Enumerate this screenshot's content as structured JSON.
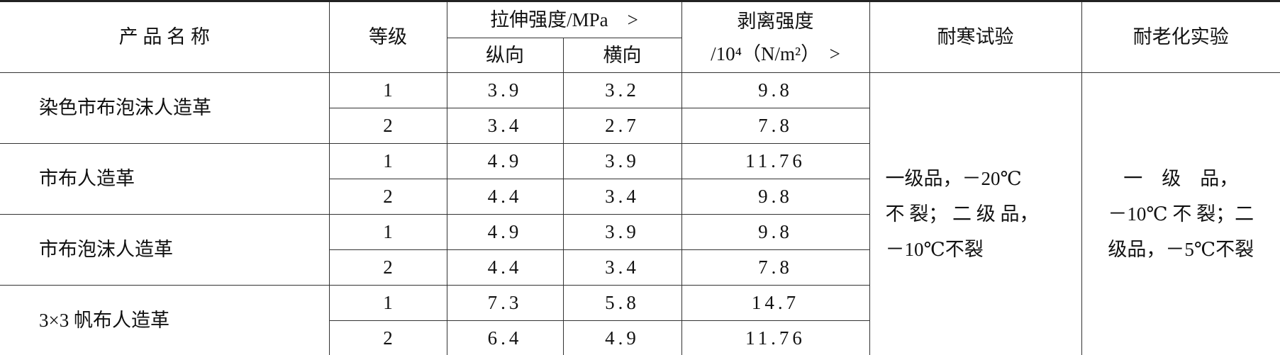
{
  "header": {
    "product": "产 品 名 称",
    "grade": "等级",
    "tensile": "拉伸强度/MPa　>",
    "longitudinal": "纵向",
    "transverse": "横向",
    "peel": [
      "剥离强度",
      "/10⁴（N/m²）　>"
    ],
    "cold": "耐寒试验",
    "aging": "耐老化实验"
  },
  "products": [
    {
      "name": "染色市布泡沫人造革",
      "grades": [
        {
          "grade": "1",
          "longitudinal": "3.9",
          "transverse": "3.2",
          "peel": "9.8"
        },
        {
          "grade": "2",
          "longitudinal": "3.4",
          "transverse": "2.7",
          "peel": "7.8"
        }
      ]
    },
    {
      "name": "市布人造革",
      "grades": [
        {
          "grade": "1",
          "longitudinal": "4.9",
          "transverse": "3.9",
          "peel": "11.76"
        },
        {
          "grade": "2",
          "longitudinal": "4.4",
          "transverse": "3.4",
          "peel": "9.8"
        }
      ]
    },
    {
      "name": "市布泡沫人造革",
      "grades": [
        {
          "grade": "1",
          "longitudinal": "4.9",
          "transverse": "3.9",
          "peel": "9.8"
        },
        {
          "grade": "2",
          "longitudinal": "4.4",
          "transverse": "3.4",
          "peel": "7.8"
        }
      ]
    },
    {
      "name": "3×3 帆布人造革",
      "grades": [
        {
          "grade": "1",
          "longitudinal": "7.3",
          "transverse": "5.8",
          "peel": "14.7"
        },
        {
          "grade": "2",
          "longitudinal": "6.4",
          "transverse": "4.9",
          "peel": "11.76"
        }
      ]
    }
  ],
  "cold_test": [
    "一级品，－20℃",
    "不 裂； 二 级 品，",
    "－10℃不裂"
  ],
  "aging_test": [
    "一　级　品，",
    "－10℃ 不 裂；二",
    "级品，－5℃不裂"
  ]
}
